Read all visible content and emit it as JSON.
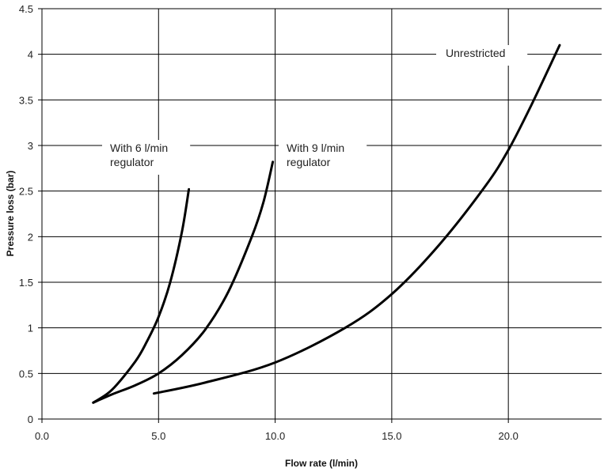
{
  "chart_data": {
    "type": "line",
    "title": "",
    "xlabel": "Flow rate (l/min)",
    "ylabel": "Pressure loss (bar)",
    "xlim": [
      0,
      24
    ],
    "ylim": [
      0,
      4.5
    ],
    "x_ticks": [
      "0.0",
      "5.0",
      "10.0",
      "15.0",
      "20.0"
    ],
    "x_tick_values": [
      0,
      5,
      10,
      15,
      20
    ],
    "y_ticks": [
      "0",
      "0.5",
      "1",
      "1.5",
      "2",
      "2.5",
      "3",
      "3.5",
      "4",
      "4.5"
    ],
    "y_tick_values": [
      0,
      0.5,
      1,
      1.5,
      2,
      2.5,
      3,
      3.5,
      4,
      4.5
    ],
    "grid": "major gridlines at x ticks and y ticks",
    "legend": "none",
    "series": [
      {
        "name": "With 6 l/min regulator",
        "x": [
          2.2,
          3.0,
          4.0,
          4.5,
          5.0,
          5.5,
          6.0,
          6.3
        ],
        "y": [
          0.18,
          0.32,
          0.63,
          0.85,
          1.12,
          1.5,
          2.05,
          2.52
        ]
      },
      {
        "name": "With 9 l/min regulator",
        "x": [
          2.2,
          3.0,
          4.0,
          5.0,
          6.0,
          7.0,
          8.0,
          9.0,
          9.5,
          9.9
        ],
        "y": [
          0.18,
          0.27,
          0.37,
          0.5,
          0.7,
          0.98,
          1.4,
          2.0,
          2.38,
          2.82
        ]
      },
      {
        "name": "Unrestricted",
        "x": [
          4.8,
          7.0,
          10.0,
          13.0,
          15.0,
          17.0,
          19.0,
          20.0,
          21.0,
          22.2
        ],
        "y": [
          0.28,
          0.4,
          0.62,
          1.0,
          1.37,
          1.9,
          2.55,
          2.95,
          3.45,
          4.1
        ]
      }
    ],
    "annotations": [
      {
        "lines": [
          "With 6 l/min",
          "regulator"
        ],
        "anchor_series": 0
      },
      {
        "lines": [
          "With 9 l/min",
          "regulator"
        ],
        "anchor_series": 1
      },
      {
        "lines": [
          "Unrestricted"
        ],
        "anchor_series": 2
      }
    ]
  }
}
